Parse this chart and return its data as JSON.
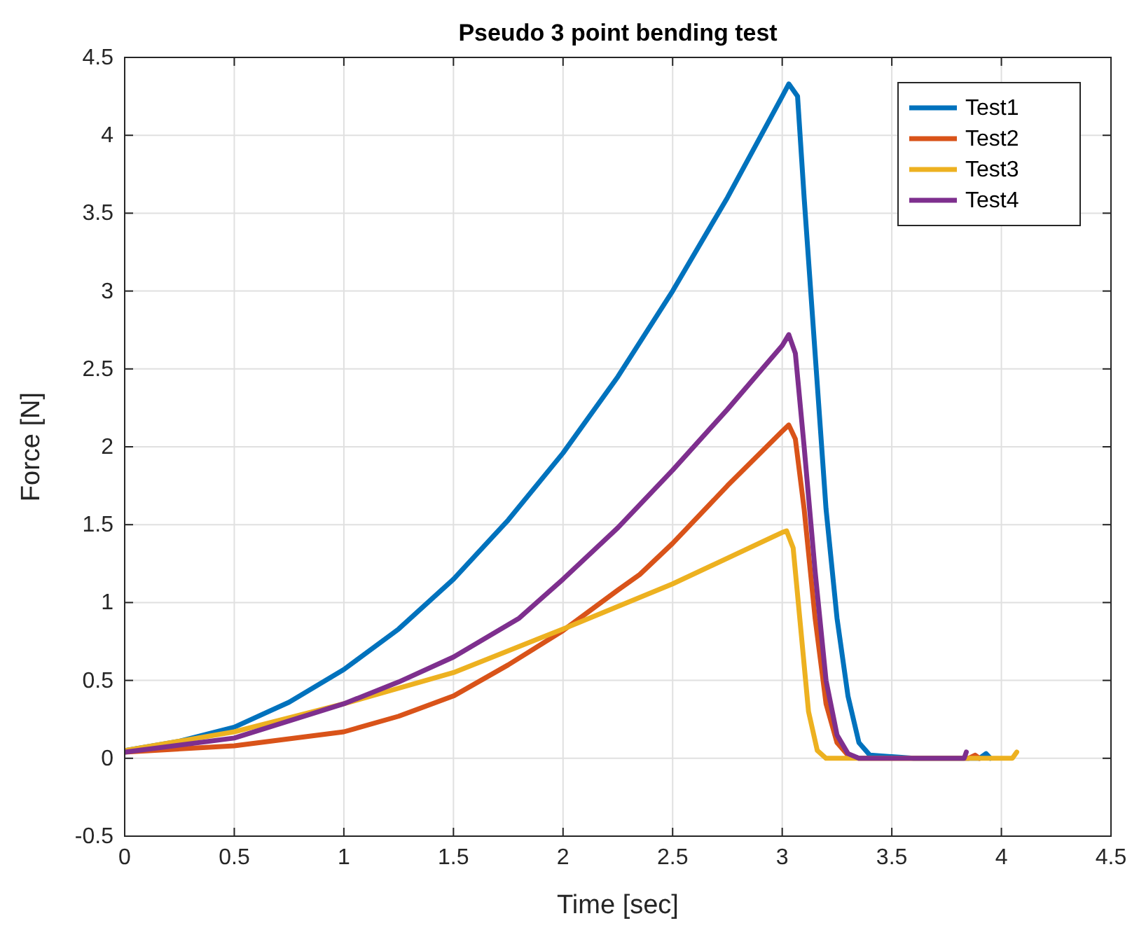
{
  "chart_data": {
    "type": "line",
    "title": "Pseudo 3 point bending test",
    "xlabel": "Time [sec]",
    "ylabel": "Force [N]",
    "xlim": [
      0,
      4.5
    ],
    "xticks": [
      0,
      0.5,
      1,
      1.5,
      2,
      2.5,
      3,
      3.5,
      4,
      4.5
    ],
    "ylim": [
      -0.5,
      4.5
    ],
    "yticks": [
      -0.5,
      0,
      0.5,
      1,
      1.5,
      2,
      2.5,
      3,
      3.5,
      4,
      4.5
    ],
    "grid": true,
    "legend": "top right",
    "line_style": "solid",
    "series": [
      {
        "name": "Test1",
        "color": "#0072bd",
        "x": [
          0,
          0.25,
          0.5,
          0.75,
          1,
          1.25,
          1.5,
          1.75,
          2,
          2.25,
          2.5,
          2.75,
          3,
          3.03,
          3.07,
          3.1,
          3.15,
          3.2,
          3.25,
          3.3,
          3.35,
          3.4,
          3.6,
          3.9,
          3.93,
          3.95
        ],
        "values": [
          0.05,
          0.11,
          0.2,
          0.36,
          0.57,
          0.83,
          1.15,
          1.53,
          1.96,
          2.45,
          3.0,
          3.6,
          4.25,
          4.33,
          4.25,
          3.6,
          2.6,
          1.6,
          0.9,
          0.4,
          0.1,
          0.02,
          0,
          0,
          0.03,
          0
        ]
      },
      {
        "name": "Test2",
        "color": "#d95319",
        "x": [
          0,
          0.5,
          1,
          1.25,
          1.5,
          1.75,
          2,
          2.25,
          2.35,
          2.5,
          2.75,
          3,
          3.03,
          3.06,
          3.1,
          3.15,
          3.2,
          3.25,
          3.3,
          3.35,
          3.85,
          3.88,
          3.9
        ],
        "values": [
          0.04,
          0.08,
          0.17,
          0.27,
          0.4,
          0.6,
          0.82,
          1.08,
          1.18,
          1.38,
          1.75,
          2.1,
          2.14,
          2.05,
          1.6,
          0.9,
          0.35,
          0.1,
          0.02,
          0,
          0,
          0.02,
          0
        ]
      },
      {
        "name": "Test3",
        "color": "#edb120",
        "x": [
          0,
          0.5,
          1,
          1.5,
          2,
          2.5,
          3,
          3.02,
          3.05,
          3.08,
          3.12,
          3.16,
          3.2,
          4.05,
          4.07
        ],
        "values": [
          0.05,
          0.17,
          0.35,
          0.55,
          0.83,
          1.12,
          1.45,
          1.46,
          1.35,
          0.9,
          0.3,
          0.05,
          0,
          0,
          0.04
        ]
      },
      {
        "name": "Test4",
        "color": "#7e2f8e",
        "x": [
          0,
          0.5,
          1,
          1.25,
          1.5,
          1.8,
          2,
          2.25,
          2.5,
          2.75,
          3,
          3.03,
          3.06,
          3.1,
          3.15,
          3.2,
          3.25,
          3.3,
          3.35,
          3.83,
          3.84
        ],
        "values": [
          0.04,
          0.13,
          0.35,
          0.49,
          0.65,
          0.9,
          1.15,
          1.48,
          1.85,
          2.24,
          2.65,
          2.72,
          2.6,
          2.0,
          1.2,
          0.5,
          0.15,
          0.03,
          0,
          0,
          0.04
        ]
      }
    ]
  }
}
